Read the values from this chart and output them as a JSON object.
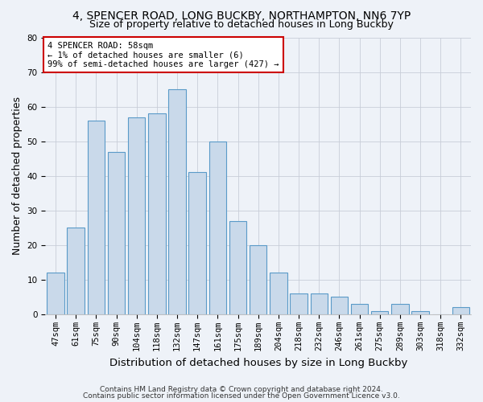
{
  "title_line1": "4, SPENCER ROAD, LONG BUCKBY, NORTHAMPTON, NN6 7YP",
  "title_line2": "Size of property relative to detached houses in Long Buckby",
  "xlabel": "Distribution of detached houses by size in Long Buckby",
  "ylabel": "Number of detached properties",
  "categories": [
    "47sqm",
    "61sqm",
    "75sqm",
    "90sqm",
    "104sqm",
    "118sqm",
    "132sqm",
    "147sqm",
    "161sqm",
    "175sqm",
    "189sqm",
    "204sqm",
    "218sqm",
    "232sqm",
    "246sqm",
    "261sqm",
    "275sqm",
    "289sqm",
    "303sqm",
    "318sqm",
    "332sqm"
  ],
  "values": [
    12,
    25,
    56,
    47,
    57,
    58,
    65,
    41,
    50,
    27,
    20,
    12,
    6,
    6,
    5,
    3,
    1,
    3,
    1,
    0,
    2
  ],
  "bar_color": "#c9d9ea",
  "bar_edge_color": "#5a9ac8",
  "ylim": [
    0,
    80
  ],
  "yticks": [
    0,
    10,
    20,
    30,
    40,
    50,
    60,
    70,
    80
  ],
  "annotation_text": "4 SPENCER ROAD: 58sqm\n← 1% of detached houses are smaller (6)\n99% of semi-detached houses are larger (427) →",
  "annotation_box_color": "#ffffff",
  "annotation_box_edge": "#cc0000",
  "footnote_line1": "Contains HM Land Registry data © Crown copyright and database right 2024.",
  "footnote_line2": "Contains public sector information licensed under the Open Government Licence v3.0.",
  "background_color": "#eef2f8",
  "grid_color": "#c8cdd8",
  "title1_fontsize": 10,
  "title2_fontsize": 9,
  "axis_label_fontsize": 9,
  "tick_fontsize": 7.5,
  "annotation_fontsize": 7.5,
  "footnote_fontsize": 6.5
}
